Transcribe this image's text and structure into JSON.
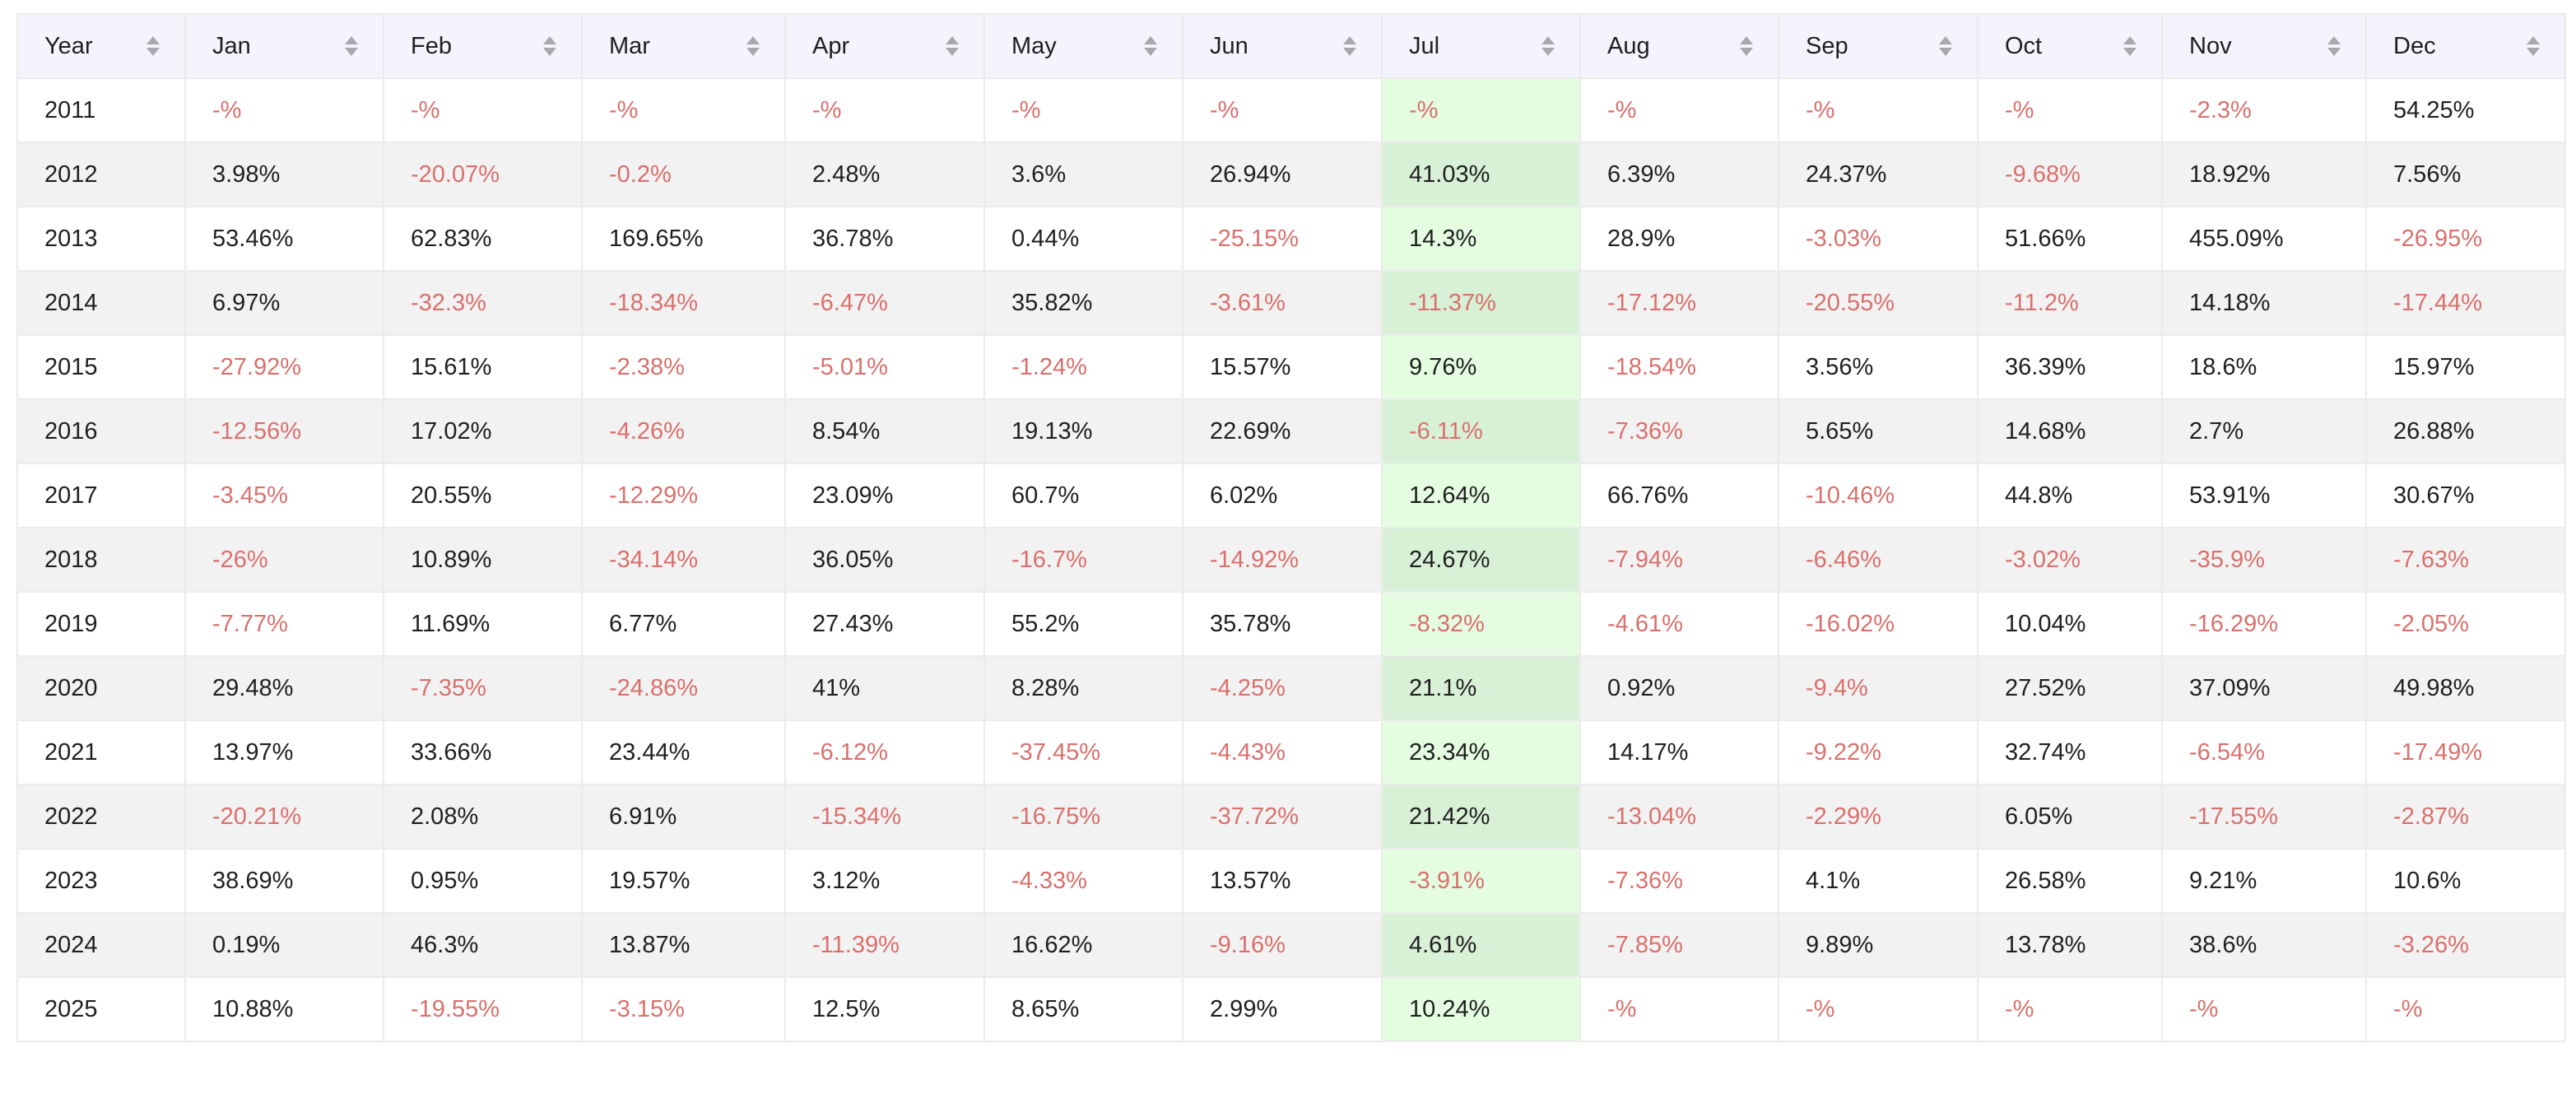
{
  "columns": [
    "Year",
    "Jan",
    "Feb",
    "Mar",
    "Apr",
    "May",
    "Jun",
    "Jul",
    "Aug",
    "Sep",
    "Oct",
    "Nov",
    "Dec"
  ],
  "highlighted_column": "Jul",
  "colors": {
    "header_bg": "#f3f4fc",
    "row_alt_bg": "#f2f2f2",
    "highlight_bg": "#e4fde1",
    "negative_text": "#d9706c",
    "positive_text": "#1f1f1f"
  },
  "icons": {
    "sort": "sort-caret-icon"
  },
  "rows": [
    {
      "year": "2011",
      "values": [
        "-%",
        "-%",
        "-%",
        "-%",
        "-%",
        "-%",
        "-%",
        "-%",
        "-%",
        "-%",
        "-2.3%",
        "54.25%"
      ]
    },
    {
      "year": "2012",
      "values": [
        "3.98%",
        "-20.07%",
        "-0.2%",
        "2.48%",
        "3.6%",
        "26.94%",
        "41.03%",
        "6.39%",
        "24.37%",
        "-9.68%",
        "18.92%",
        "7.56%"
      ]
    },
    {
      "year": "2013",
      "values": [
        "53.46%",
        "62.83%",
        "169.65%",
        "36.78%",
        "0.44%",
        "-25.15%",
        "14.3%",
        "28.9%",
        "-3.03%",
        "51.66%",
        "455.09%",
        "-26.95%"
      ]
    },
    {
      "year": "2014",
      "values": [
        "6.97%",
        "-32.3%",
        "-18.34%",
        "-6.47%",
        "35.82%",
        "-3.61%",
        "-11.37%",
        "-17.12%",
        "-20.55%",
        "-11.2%",
        "14.18%",
        "-17.44%"
      ]
    },
    {
      "year": "2015",
      "values": [
        "-27.92%",
        "15.61%",
        "-2.38%",
        "-5.01%",
        "-1.24%",
        "15.57%",
        "9.76%",
        "-18.54%",
        "3.56%",
        "36.39%",
        "18.6%",
        "15.97%"
      ]
    },
    {
      "year": "2016",
      "values": [
        "-12.56%",
        "17.02%",
        "-4.26%",
        "8.54%",
        "19.13%",
        "22.69%",
        "-6.11%",
        "-7.36%",
        "5.65%",
        "14.68%",
        "2.7%",
        "26.88%"
      ]
    },
    {
      "year": "2017",
      "values": [
        "-3.45%",
        "20.55%",
        "-12.29%",
        "23.09%",
        "60.7%",
        "6.02%",
        "12.64%",
        "66.76%",
        "-10.46%",
        "44.8%",
        "53.91%",
        "30.67%"
      ]
    },
    {
      "year": "2018",
      "values": [
        "-26%",
        "10.89%",
        "-34.14%",
        "36.05%",
        "-16.7%",
        "-14.92%",
        "24.67%",
        "-7.94%",
        "-6.46%",
        "-3.02%",
        "-35.9%",
        "-7.63%"
      ]
    },
    {
      "year": "2019",
      "values": [
        "-7.77%",
        "11.69%",
        "6.77%",
        "27.43%",
        "55.2%",
        "35.78%",
        "-8.32%",
        "-4.61%",
        "-16.02%",
        "10.04%",
        "-16.29%",
        "-2.05%"
      ]
    },
    {
      "year": "2020",
      "values": [
        "29.48%",
        "-7.35%",
        "-24.86%",
        "41%",
        "8.28%",
        "-4.25%",
        "21.1%",
        "0.92%",
        "-9.4%",
        "27.52%",
        "37.09%",
        "49.98%"
      ]
    },
    {
      "year": "2021",
      "values": [
        "13.97%",
        "33.66%",
        "23.44%",
        "-6.12%",
        "-37.45%",
        "-4.43%",
        "23.34%",
        "14.17%",
        "-9.22%",
        "32.74%",
        "-6.54%",
        "-17.49%"
      ]
    },
    {
      "year": "2022",
      "values": [
        "-20.21%",
        "2.08%",
        "6.91%",
        "-15.34%",
        "-16.75%",
        "-37.72%",
        "21.42%",
        "-13.04%",
        "-2.29%",
        "6.05%",
        "-17.55%",
        "-2.87%"
      ]
    },
    {
      "year": "2023",
      "values": [
        "38.69%",
        "0.95%",
        "19.57%",
        "3.12%",
        "-4.33%",
        "13.57%",
        "-3.91%",
        "-7.36%",
        "4.1%",
        "26.58%",
        "9.21%",
        "10.6%"
      ]
    },
    {
      "year": "2024",
      "values": [
        "0.19%",
        "46.3%",
        "13.87%",
        "-11.39%",
        "16.62%",
        "-9.16%",
        "4.61%",
        "-7.85%",
        "9.89%",
        "13.78%",
        "38.6%",
        "-3.26%"
      ]
    },
    {
      "year": "2025",
      "values": [
        "10.88%",
        "-19.55%",
        "-3.15%",
        "12.5%",
        "8.65%",
        "2.99%",
        "10.24%",
        "-%",
        "-%",
        "-%",
        "-%",
        "-%"
      ]
    }
  ]
}
